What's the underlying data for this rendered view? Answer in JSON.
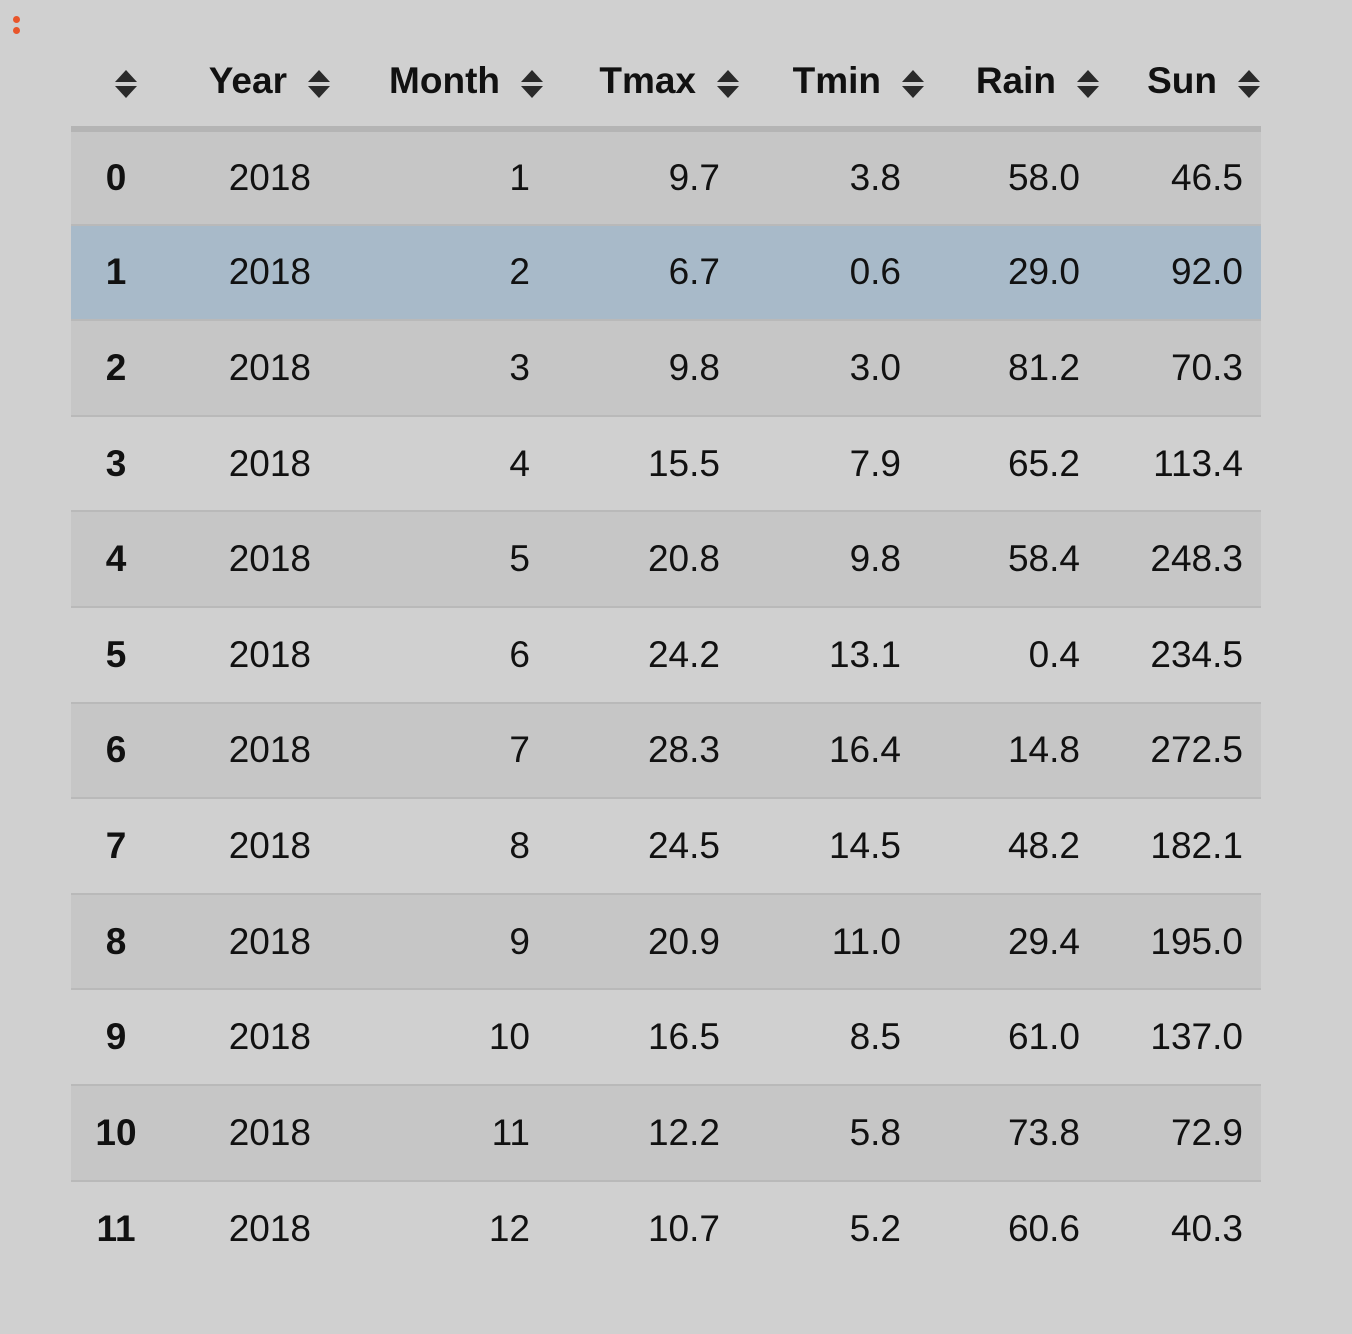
{
  "table": {
    "columns": [
      "",
      "Year",
      "Month",
      "Tmax",
      "Tmin",
      "Rain",
      "Sun"
    ],
    "selected_row": 1,
    "rows": [
      {
        "index": "0",
        "Year": "2018",
        "Month": "1",
        "Tmax": "9.7",
        "Tmin": "3.8",
        "Rain": "58.0",
        "Sun": "46.5"
      },
      {
        "index": "1",
        "Year": "2018",
        "Month": "2",
        "Tmax": "6.7",
        "Tmin": "0.6",
        "Rain": "29.0",
        "Sun": "92.0"
      },
      {
        "index": "2",
        "Year": "2018",
        "Month": "3",
        "Tmax": "9.8",
        "Tmin": "3.0",
        "Rain": "81.2",
        "Sun": "70.3"
      },
      {
        "index": "3",
        "Year": "2018",
        "Month": "4",
        "Tmax": "15.5",
        "Tmin": "7.9",
        "Rain": "65.2",
        "Sun": "113.4"
      },
      {
        "index": "4",
        "Year": "2018",
        "Month": "5",
        "Tmax": "20.8",
        "Tmin": "9.8",
        "Rain": "58.4",
        "Sun": "248.3"
      },
      {
        "index": "5",
        "Year": "2018",
        "Month": "6",
        "Tmax": "24.2",
        "Tmin": "13.1",
        "Rain": "0.4",
        "Sun": "234.5"
      },
      {
        "index": "6",
        "Year": "2018",
        "Month": "7",
        "Tmax": "28.3",
        "Tmin": "16.4",
        "Rain": "14.8",
        "Sun": "272.5"
      },
      {
        "index": "7",
        "Year": "2018",
        "Month": "8",
        "Tmax": "24.5",
        "Tmin": "14.5",
        "Rain": "48.2",
        "Sun": "182.1"
      },
      {
        "index": "8",
        "Year": "2018",
        "Month": "9",
        "Tmax": "20.9",
        "Tmin": "11.0",
        "Rain": "29.4",
        "Sun": "195.0"
      },
      {
        "index": "9",
        "Year": "2018",
        "Month": "10",
        "Tmax": "16.5",
        "Tmin": "8.5",
        "Rain": "61.0",
        "Sun": "137.0"
      },
      {
        "index": "10",
        "Year": "2018",
        "Month": "11",
        "Tmax": "12.2",
        "Tmin": "5.8",
        "Rain": "73.8",
        "Sun": "72.9"
      },
      {
        "index": "11",
        "Year": "2018",
        "Month": "12",
        "Tmax": "10.7",
        "Tmin": "5.2",
        "Rain": "60.6",
        "Sun": "40.3"
      }
    ]
  },
  "icons": {
    "cell_toolbar": "vertical-dots-icon",
    "sort": "sort-up-down-icon"
  },
  "colors": {
    "background": "#d0d0d0",
    "row_striped": "#c6c6c6",
    "row_selected": "#a8bac9",
    "toolbar_dots": "#e8552a"
  }
}
